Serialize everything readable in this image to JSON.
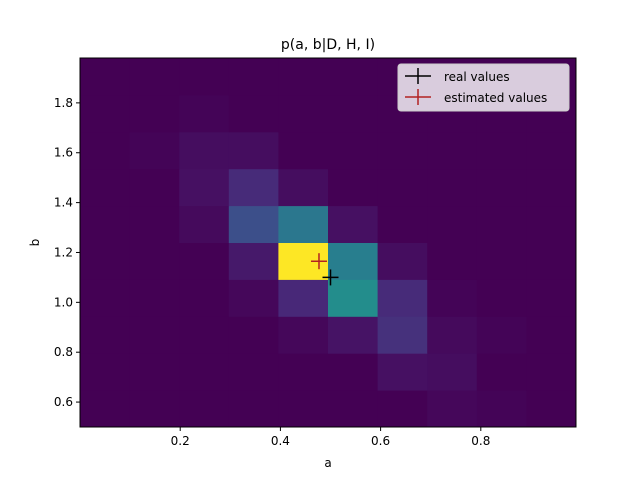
{
  "chart_data": {
    "type": "heatmap",
    "title": "p(a, b|D, H, I)",
    "xlabel": "a",
    "ylabel": "b",
    "xlim": [
      0.0,
      0.99
    ],
    "ylim": [
      0.5,
      1.98
    ],
    "xticks": [
      0.2,
      0.4,
      0.6,
      0.8
    ],
    "xtick_labels": [
      "0.2",
      "0.4",
      "0.6",
      "0.8"
    ],
    "yticks": [
      0.6,
      0.8,
      1.0,
      1.2,
      1.4,
      1.6,
      1.8
    ],
    "ytick_labels": [
      "0.6",
      "0.8",
      "1.0",
      "1.2",
      "1.4",
      "1.6",
      "1.8"
    ],
    "x_edges": [
      0.0,
      0.099,
      0.198,
      0.297,
      0.396,
      0.495,
      0.594,
      0.693,
      0.792,
      0.891,
      0.99
    ],
    "y_edges": [
      0.5,
      0.648,
      0.796,
      0.944,
      1.092,
      1.24,
      1.388,
      1.536,
      1.684,
      1.832,
      1.98
    ],
    "grid": false,
    "colormap": "viridis",
    "value_range": [
      0,
      1
    ],
    "z": [
      [
        0.0,
        0.0,
        0.0,
        0.0,
        0.0,
        0.0,
        0.0,
        0.02,
        0.01,
        0.0
      ],
      [
        0.0,
        0.0,
        0.0,
        0.0,
        0.0,
        0.0,
        0.05,
        0.04,
        0.0,
        0.0
      ],
      [
        0.0,
        0.0,
        0.0,
        0.0,
        0.02,
        0.06,
        0.16,
        0.03,
        0.01,
        0.0
      ],
      [
        0.0,
        0.0,
        0.0,
        0.02,
        0.13,
        0.55,
        0.14,
        0.01,
        0.0,
        0.0
      ],
      [
        0.0,
        0.0,
        0.0,
        0.08,
        1.0,
        0.48,
        0.04,
        0.0,
        0.0,
        0.0
      ],
      [
        0.0,
        0.0,
        0.03,
        0.27,
        0.45,
        0.05,
        0.0,
        0.0,
        0.0,
        0.0
      ],
      [
        0.0,
        0.0,
        0.05,
        0.14,
        0.04,
        0.0,
        0.0,
        0.0,
        0.0,
        0.0
      ],
      [
        0.0,
        0.01,
        0.04,
        0.04,
        0.0,
        0.0,
        0.0,
        0.0,
        0.0,
        0.0
      ],
      [
        0.0,
        0.0,
        0.01,
        0.0,
        0.0,
        0.0,
        0.0,
        0.0,
        0.0,
        0.0
      ],
      [
        0.0,
        0.0,
        0.0,
        0.0,
        0.0,
        0.0,
        0.0,
        0.0,
        0.0,
        0.0
      ]
    ],
    "markers": [
      {
        "name": "real values",
        "a": 0.5,
        "b": 1.1,
        "color": "#000000"
      },
      {
        "name": "estimated values",
        "a": 0.477,
        "b": 1.165,
        "color": "#b22222"
      }
    ],
    "legend": {
      "position": "top-right"
    }
  }
}
